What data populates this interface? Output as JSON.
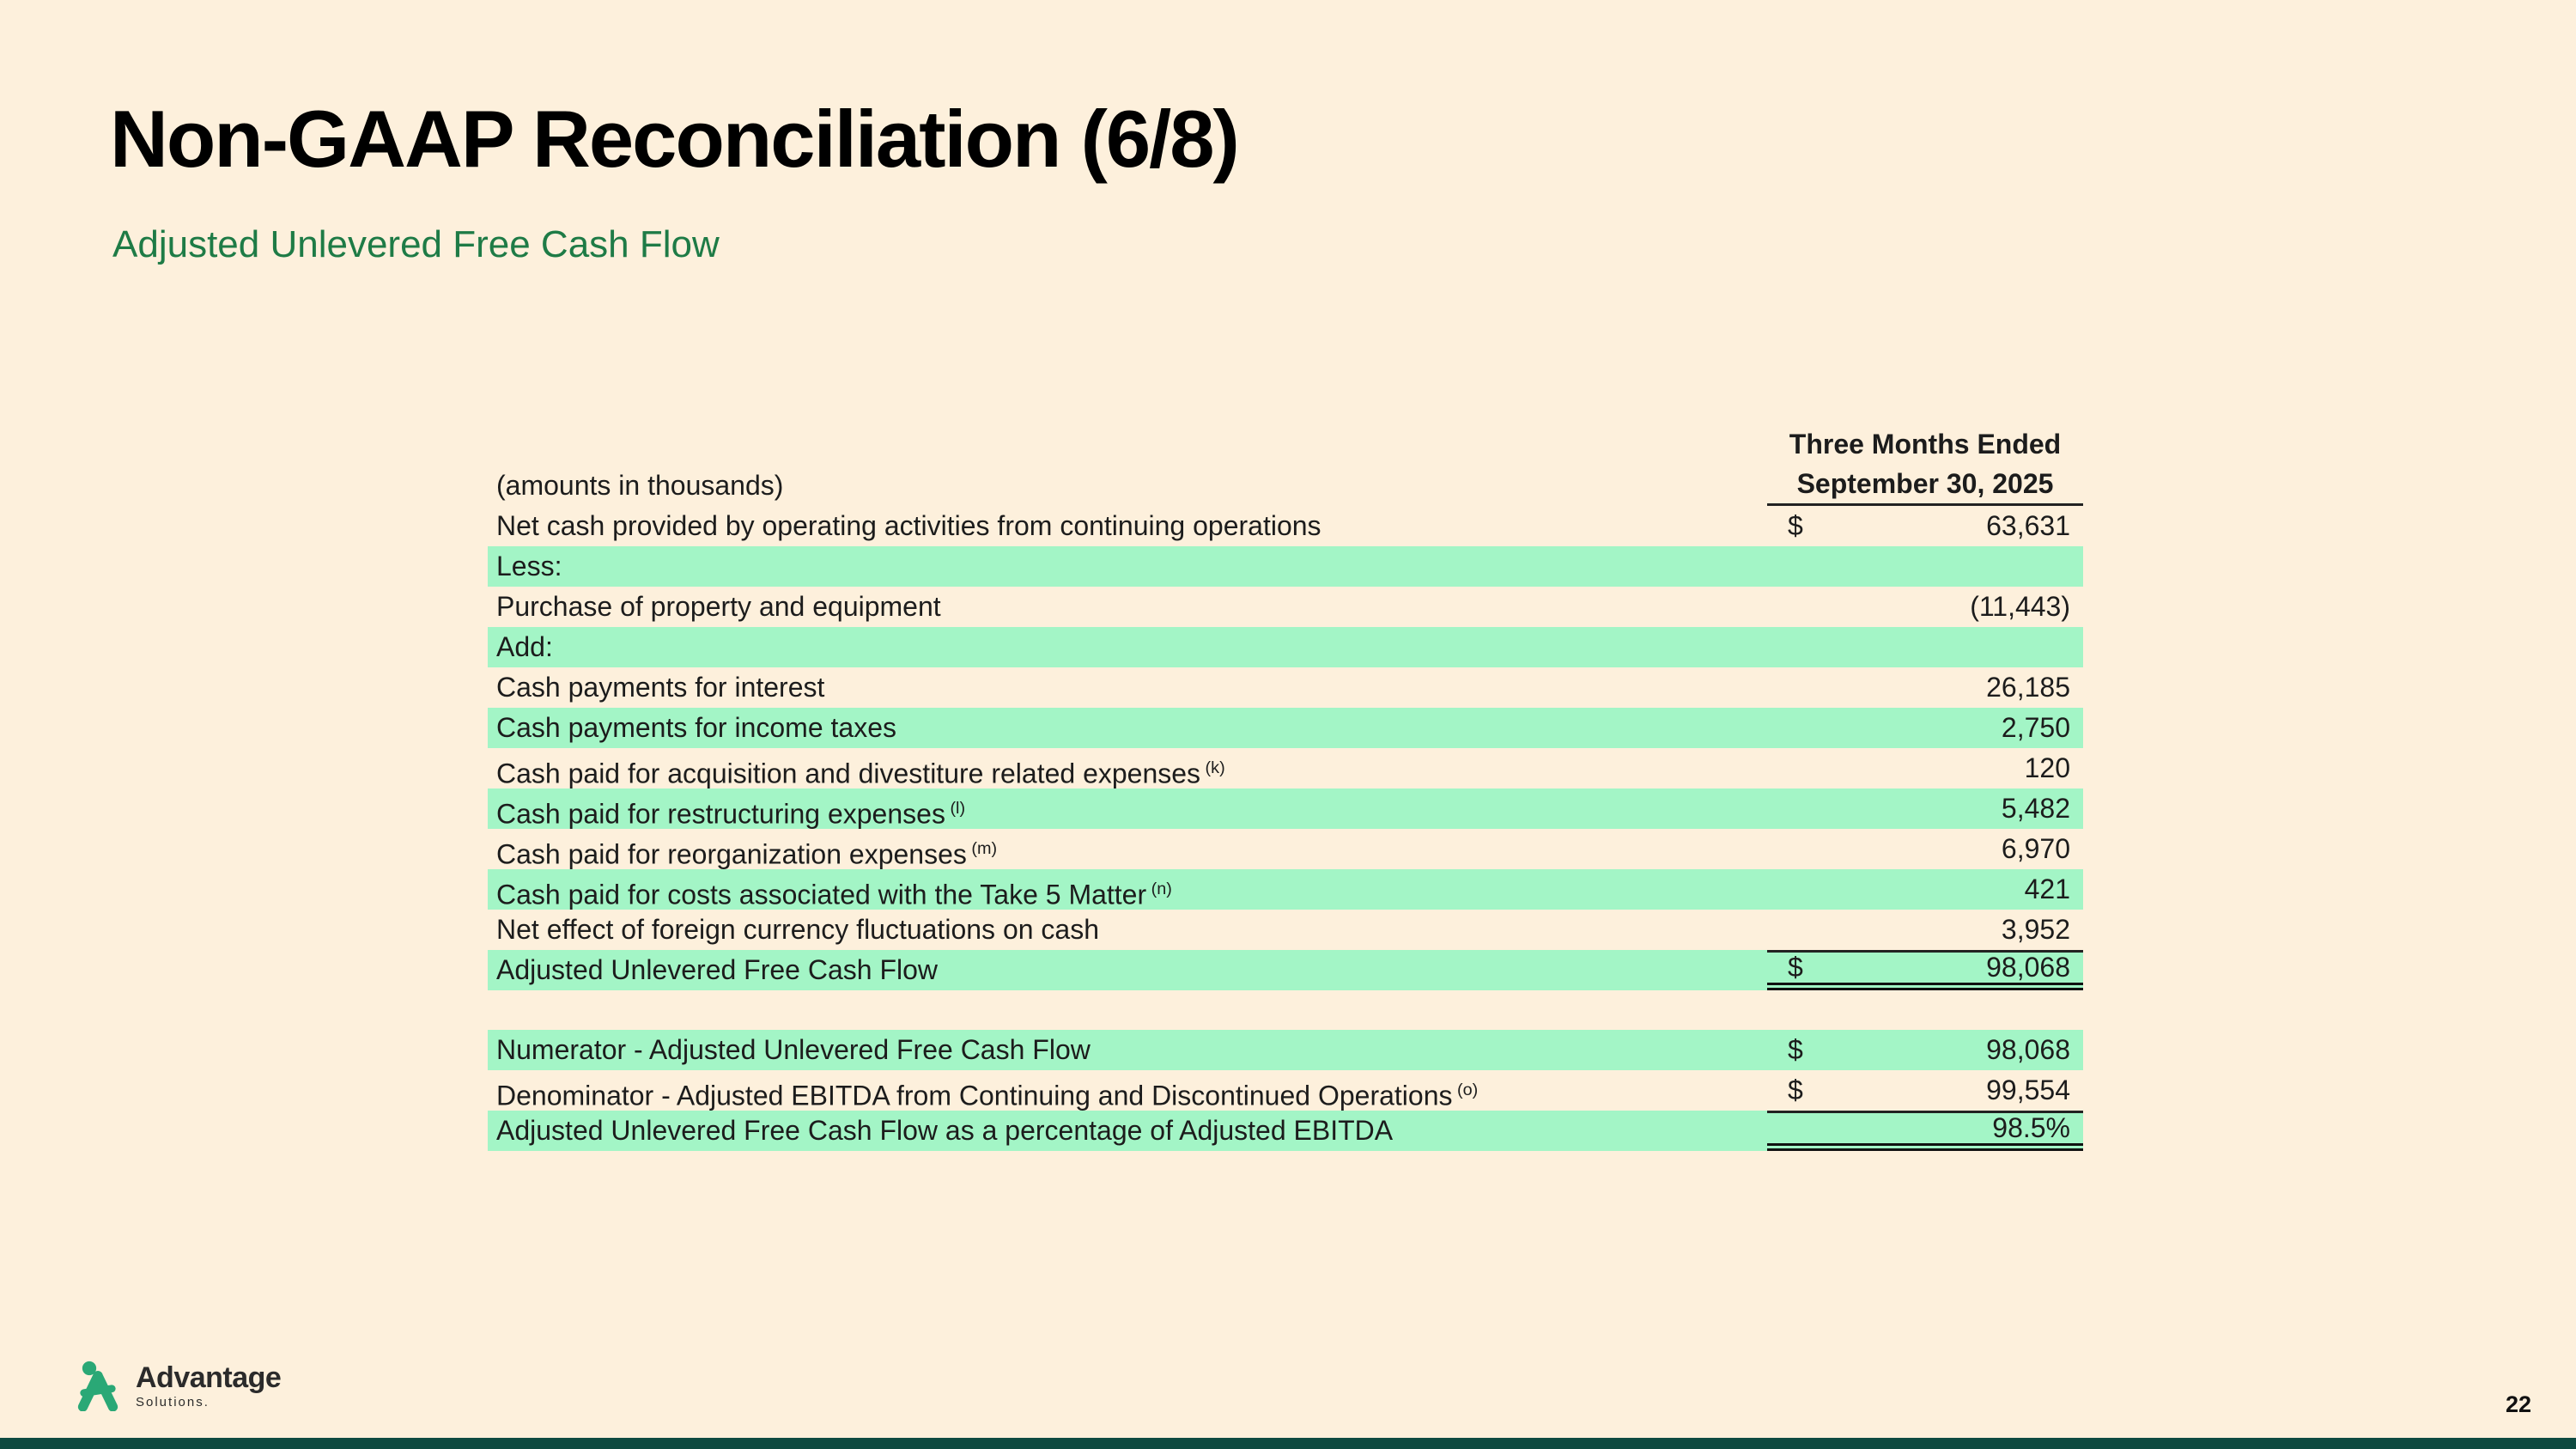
{
  "slide": {
    "title": "Non-GAAP Reconciliation (6/8)",
    "subtitle": "Adjusted Unlevered Free Cash Flow",
    "page_number": "22"
  },
  "logo": {
    "brand": "Advantage",
    "brand_sub": "Solutions.",
    "icon": "advantage-person-icon"
  },
  "table": {
    "amounts_note": "(amounts in thousands)",
    "period_header_line1": "Three Months Ended",
    "period_header_line2": "September 30, 2025",
    "sections": [
      {
        "name": "reconciliation",
        "rows": [
          {
            "label": "Net cash provided by operating activities from continuing operations",
            "sup": "",
            "dollar": "$",
            "value": "63,631",
            "highlight": false,
            "rule_above": false,
            "double_below": false
          },
          {
            "label": "Less:",
            "sup": "",
            "dollar": "",
            "value": "",
            "highlight": true,
            "rule_above": false,
            "double_below": false
          },
          {
            "label": "Purchase of property and equipment",
            "sup": "",
            "dollar": "",
            "value": "(11,443)",
            "highlight": false,
            "rule_above": false,
            "double_below": false
          },
          {
            "label": "Add:",
            "sup": "",
            "dollar": "",
            "value": "",
            "highlight": true,
            "rule_above": false,
            "double_below": false
          },
          {
            "label": "Cash payments for interest",
            "sup": "",
            "dollar": "",
            "value": "26,185",
            "highlight": false,
            "rule_above": false,
            "double_below": false
          },
          {
            "label": "Cash payments for income taxes",
            "sup": "",
            "dollar": "",
            "value": "2,750",
            "highlight": true,
            "rule_above": false,
            "double_below": false
          },
          {
            "label": "Cash paid for acquisition and divestiture related expenses",
            "sup": "(k)",
            "dollar": "",
            "value": "120",
            "highlight": false,
            "rule_above": false,
            "double_below": false
          },
          {
            "label": "Cash paid for restructuring expenses",
            "sup": "(l)",
            "dollar": "",
            "value": "5,482",
            "highlight": true,
            "rule_above": false,
            "double_below": false
          },
          {
            "label": "Cash paid for reorganization expenses",
            "sup": "(m)",
            "dollar": "",
            "value": "6,970",
            "highlight": false,
            "rule_above": false,
            "double_below": false
          },
          {
            "label": "Cash paid for costs associated with the Take 5 Matter",
            "sup": "(n)",
            "dollar": "",
            "value": "421",
            "highlight": true,
            "rule_above": false,
            "double_below": false
          },
          {
            "label": "Net effect of foreign currency fluctuations on cash",
            "sup": "",
            "dollar": "",
            "value": "3,952",
            "highlight": false,
            "rule_above": false,
            "double_below": false
          },
          {
            "label": "Adjusted Unlevered Free Cash Flow",
            "sup": "",
            "dollar": "$",
            "value": "98,068",
            "highlight": true,
            "rule_above": true,
            "double_below": true
          }
        ]
      },
      {
        "name": "ratio",
        "rows": [
          {
            "label": "Numerator - Adjusted Unlevered Free Cash Flow",
            "sup": "",
            "dollar": "$",
            "value": "98,068",
            "highlight": true,
            "rule_above": false,
            "double_below": false
          },
          {
            "label": "Denominator - Adjusted EBITDA from Continuing and Discontinued Operations",
            "sup": "(o)",
            "dollar": "$",
            "value": "99,554",
            "highlight": false,
            "rule_above": false,
            "double_below": false
          },
          {
            "label": "Adjusted Unlevered Free Cash Flow as a percentage of Adjusted EBITDA",
            "sup": "",
            "dollar": "",
            "value": "98.5%",
            "highlight": true,
            "rule_above": true,
            "double_below": true
          }
        ]
      }
    ]
  },
  "colors": {
    "background": "#fdf0dc",
    "row_highlight": "#a3f5c6",
    "subtitle_green": "#1e7b46",
    "footer_bar": "#0e4a40",
    "logo_green": "#2aa876"
  }
}
